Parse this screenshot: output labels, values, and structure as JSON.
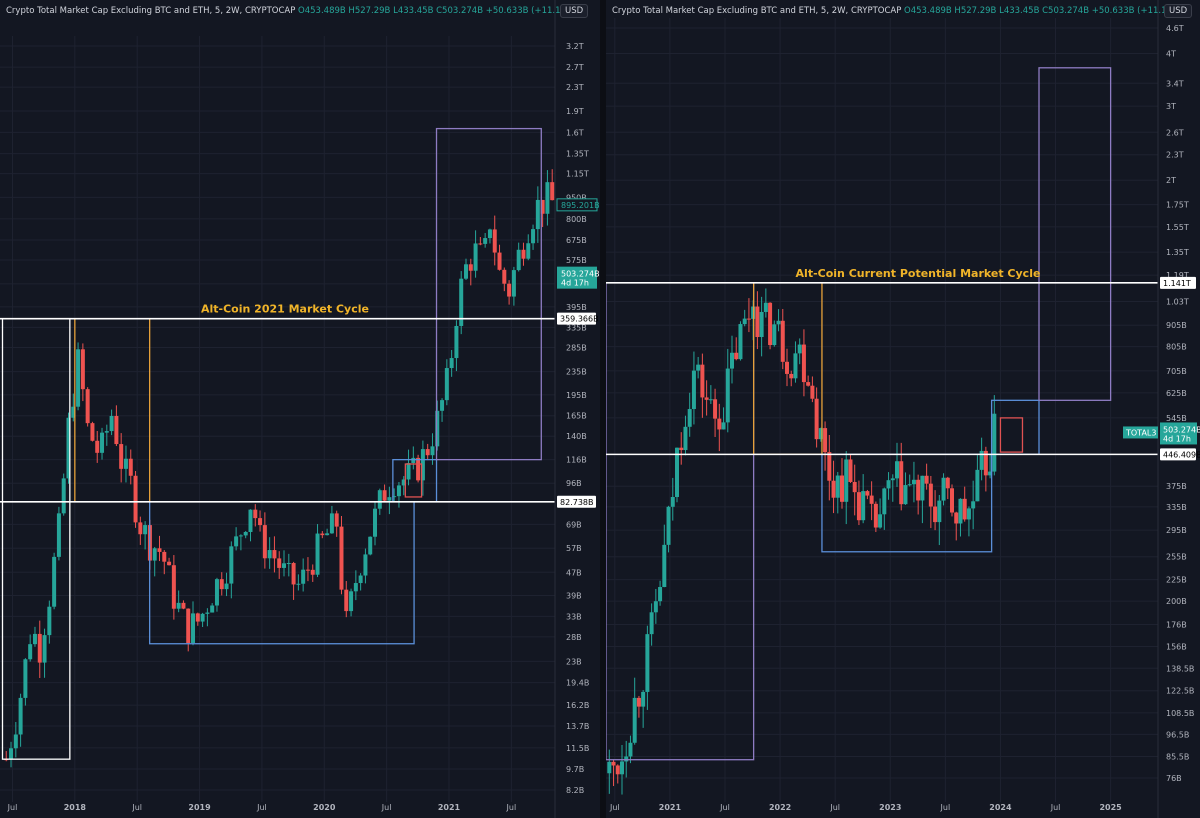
{
  "colors": {
    "bg": "#131722",
    "up": "#26a69a",
    "down": "#ef5350",
    "white_line": "#ffffff",
    "purple": "#8e7cc3",
    "blue": "#5b8fd9",
    "orange": "#e6a13a",
    "red": "#e05252"
  },
  "left": {
    "title": "Crypto Total Market Cap Excluding BTC and ETH, 5, 2W, CRYPTOCAP",
    "ohlc": {
      "o": "O453.489B",
      "h": "H527.29B",
      "l": "L433.45B",
      "c": "C503.274B",
      "chg": "+50.633B (+11.19%)"
    },
    "currency": "USD",
    "annotation": "Alt-Coin 2021 Market Cycle",
    "price_tags": {
      "top_line": "359.366B",
      "bottom_line": "82.738B",
      "last": "895.201B",
      "current": "503.274B",
      "countdown": "4d 17h"
    }
  },
  "right": {
    "title": "Crypto Total Market Cap Excluding BTC and ETH, 5, 2W, CRYPTOCAP",
    "ohlc": {
      "o": "O453.489B",
      "h": "H527.29B",
      "l": "L433.45B",
      "c": "C503.274B",
      "chg": "+50.633B (+11.19%)"
    },
    "currency": "USD",
    "annotation": "Alt-Coin Current Potential Market Cycle",
    "price_tags": {
      "top_line": "1.141T",
      "bottom_line": "446.409B",
      "symbol": "TOTAL3",
      "current": "503.274B",
      "countdown": "4d 17h"
    }
  },
  "chart_data": [
    {
      "type": "candlestick",
      "title": "Crypto Total Market Cap Excluding BTC and ETH, 5, 2W, CRYPTOCAP",
      "y_scale": "log",
      "ylim": [
        "8.2B",
        "3.2T"
      ],
      "y_ticks": [
        {
          "label": "3.2T",
          "v": 3200
        },
        {
          "label": "2.7T",
          "v": 2700
        },
        {
          "label": "2.3T",
          "v": 2300
        },
        {
          "label": "1.9T",
          "v": 1900
        },
        {
          "label": "1.6T",
          "v": 1600
        },
        {
          "label": "1.35T",
          "v": 1350
        },
        {
          "label": "1.15T",
          "v": 1150
        },
        {
          "label": "950B",
          "v": 950
        },
        {
          "label": "800B",
          "v": 800
        },
        {
          "label": "675B",
          "v": 675
        },
        {
          "label": "575B",
          "v": 575
        },
        {
          "label": "475B",
          "v": 475
        },
        {
          "label": "395B",
          "v": 395
        },
        {
          "label": "335B",
          "v": 335
        },
        {
          "label": "285B",
          "v": 285
        },
        {
          "label": "235B",
          "v": 235
        },
        {
          "label": "195B",
          "v": 195
        },
        {
          "label": "165B",
          "v": 165
        },
        {
          "label": "140B",
          "v": 140
        },
        {
          "label": "116B",
          "v": 116
        },
        {
          "label": "96B",
          "v": 96
        },
        {
          "label": "69B",
          "v": 69
        },
        {
          "label": "57B",
          "v": 57
        },
        {
          "label": "47B",
          "v": 47
        },
        {
          "label": "39B",
          "v": 39
        },
        {
          "label": "33B",
          "v": 33
        },
        {
          "label": "28B",
          "v": 28
        },
        {
          "label": "23B",
          "v": 23
        },
        {
          "label": "19.4B",
          "v": 19.4
        },
        {
          "label": "16.2B",
          "v": 16.2
        },
        {
          "label": "13.7B",
          "v": 13.7
        },
        {
          "label": "11.5B",
          "v": 11.5
        },
        {
          "label": "9.7B",
          "v": 9.7
        },
        {
          "label": "8.2B",
          "v": 8.2
        }
      ],
      "x_ticks": [
        {
          "label": "Jul",
          "t": 2017.5
        },
        {
          "label": "2018",
          "t": 2018.0
        },
        {
          "label": "Jul",
          "t": 2018.5
        },
        {
          "label": "2019",
          "t": 2019.0
        },
        {
          "label": "Jul",
          "t": 2019.5
        },
        {
          "label": "2020",
          "t": 2020.0
        },
        {
          "label": "Jul",
          "t": 2020.5
        },
        {
          "label": "2021",
          "t": 2021.0
        },
        {
          "label": "Jul",
          "t": 2021.5
        }
      ],
      "xlim": [
        2017.4,
        2021.85
      ],
      "price_path": [
        [
          2017.45,
          10.5
        ],
        [
          2017.55,
          16
        ],
        [
          2017.65,
          30
        ],
        [
          2017.72,
          26
        ],
        [
          2017.8,
          40
        ],
        [
          2017.88,
          70
        ],
        [
          2017.96,
          170
        ],
        [
          2018.03,
          260
        ],
        [
          2018.1,
          150
        ],
        [
          2018.2,
          120
        ],
        [
          2018.3,
          170
        ],
        [
          2018.38,
          110
        ],
        [
          2018.45,
          95
        ],
        [
          2018.52,
          70
        ],
        [
          2018.6,
          60
        ],
        [
          2018.7,
          55
        ],
        [
          2018.8,
          38
        ],
        [
          2018.9,
          30
        ],
        [
          2019.0,
          32
        ],
        [
          2019.1,
          40
        ],
        [
          2019.2,
          48
        ],
        [
          2019.3,
          60
        ],
        [
          2019.42,
          85
        ],
        [
          2019.48,
          62
        ],
        [
          2019.58,
          55
        ],
        [
          2019.7,
          45
        ],
        [
          2019.8,
          42
        ],
        [
          2019.9,
          52
        ],
        [
          2020.0,
          62
        ],
        [
          2020.1,
          70
        ],
        [
          2020.17,
          30
        ],
        [
          2020.28,
          50
        ],
        [
          2020.38,
          68
        ],
        [
          2020.48,
          90
        ],
        [
          2020.55,
          100
        ],
        [
          2020.62,
          98
        ],
        [
          2020.72,
          105
        ],
        [
          2020.82,
          125
        ],
        [
          2020.92,
          165
        ],
        [
          2021.0,
          230
        ],
        [
          2021.06,
          380
        ],
        [
          2021.12,
          520
        ],
        [
          2021.2,
          620
        ],
        [
          2021.28,
          580
        ],
        [
          2021.33,
          800
        ],
        [
          2021.4,
          520
        ],
        [
          2021.48,
          450
        ],
        [
          2021.56,
          600
        ],
        [
          2021.65,
          800
        ],
        [
          2021.72,
          900
        ],
        [
          2021.8,
          950
        ],
        [
          2021.84,
          895
        ]
      ],
      "lines": [
        {
          "label": "359.366B",
          "value": 359.366,
          "color": "white"
        },
        {
          "label": "82.738B",
          "value": 82.738,
          "color": "white"
        }
      ],
      "boxes": [
        {
          "color": "white",
          "t0": 2017.42,
          "t1": 2017.96,
          "v0": 10.5,
          "v1": 359.366
        },
        {
          "color": "orange",
          "t0": 2018.0,
          "t1": 2018.6,
          "v0": 82.738,
          "v1": 359.366
        },
        {
          "color": "blue",
          "t0": 2018.6,
          "t1": 2020.72,
          "v0": 26.5,
          "v1": 82.738
        },
        {
          "color": "blue",
          "t0": 2020.55,
          "t1": 2020.9,
          "v0": 82.738,
          "v1": 116
        },
        {
          "color": "red",
          "t0": 2020.65,
          "t1": 2020.78,
          "v0": 86,
          "v1": 112
        },
        {
          "color": "purple",
          "t0": 2020.9,
          "t1": 2021.74,
          "v0": 116,
          "v1": 1650
        }
      ],
      "annotation": "Alt-Coin 2021 Market Cycle"
    },
    {
      "type": "candlestick",
      "title": "Crypto Total Market Cap Excluding BTC and ETH, 5, 2W, CRYPTOCAP",
      "y_scale": "log",
      "ylim": [
        "76B",
        "4.6T"
      ],
      "y_ticks": [
        {
          "label": "4.6T",
          "v": 4600
        },
        {
          "label": "4T",
          "v": 4000
        },
        {
          "label": "3.4T",
          "v": 3400
        },
        {
          "label": "3T",
          "v": 3000
        },
        {
          "label": "2.6T",
          "v": 2600
        },
        {
          "label": "2.3T",
          "v": 2300
        },
        {
          "label": "2T",
          "v": 2000
        },
        {
          "label": "1.75T",
          "v": 1750
        },
        {
          "label": "1.55T",
          "v": 1550
        },
        {
          "label": "1.35T",
          "v": 1350
        },
        {
          "label": "1.19T",
          "v": 1190
        },
        {
          "label": "1.03T",
          "v": 1030
        },
        {
          "label": "905B",
          "v": 905
        },
        {
          "label": "805B",
          "v": 805
        },
        {
          "label": "705B",
          "v": 705
        },
        {
          "label": "625B",
          "v": 625
        },
        {
          "label": "545B",
          "v": 545
        },
        {
          "label": "375B",
          "v": 375
        },
        {
          "label": "335B",
          "v": 335
        },
        {
          "label": "295B",
          "v": 295
        },
        {
          "label": "255B",
          "v": 255
        },
        {
          "label": "225B",
          "v": 225
        },
        {
          "label": "200B",
          "v": 200
        },
        {
          "label": "176B",
          "v": 176
        },
        {
          "label": "156B",
          "v": 156
        },
        {
          "label": "138.5B",
          "v": 138.5
        },
        {
          "label": "122.5B",
          "v": 122.5
        },
        {
          "label": "108.5B",
          "v": 108.5
        },
        {
          "label": "96.5B",
          "v": 96.5
        },
        {
          "label": "85.5B",
          "v": 85.5
        },
        {
          "label": "76B",
          "v": 76
        }
      ],
      "x_ticks": [
        {
          "label": "Jul",
          "t": 2020.5
        },
        {
          "label": "2021",
          "t": 2021.0
        },
        {
          "label": "Jul",
          "t": 2021.5
        },
        {
          "label": "2022",
          "t": 2022.0
        },
        {
          "label": "Jul",
          "t": 2022.5
        },
        {
          "label": "2023",
          "t": 2023.0
        },
        {
          "label": "Jul",
          "t": 2023.5
        },
        {
          "label": "2024",
          "t": 2024.0
        },
        {
          "label": "Jul",
          "t": 2024.5
        },
        {
          "label": "2025",
          "t": 2025.0
        }
      ],
      "xlim": [
        2020.42,
        2025.43
      ],
      "price_path": [
        [
          2020.45,
          78
        ],
        [
          2020.55,
          85
        ],
        [
          2020.62,
          100
        ],
        [
          2020.72,
          125
        ],
        [
          2020.82,
          160
        ],
        [
          2020.92,
          230
        ],
        [
          2021.0,
          320
        ],
        [
          2021.08,
          480
        ],
        [
          2021.15,
          600
        ],
        [
          2021.22,
          700
        ],
        [
          2021.3,
          640
        ],
        [
          2021.4,
          540
        ],
        [
          2021.5,
          600
        ],
        [
          2021.6,
          800
        ],
        [
          2021.68,
          900
        ],
        [
          2021.76,
          1050
        ],
        [
          2021.84,
          900
        ],
        [
          2021.92,
          920
        ],
        [
          2022.0,
          850
        ],
        [
          2022.08,
          760
        ],
        [
          2022.16,
          800
        ],
        [
          2022.25,
          720
        ],
        [
          2022.33,
          550
        ],
        [
          2022.42,
          420
        ],
        [
          2022.5,
          380
        ],
        [
          2022.58,
          400
        ],
        [
          2022.66,
          370
        ],
        [
          2022.75,
          345
        ],
        [
          2022.83,
          300
        ],
        [
          2022.92,
          320
        ],
        [
          2023.0,
          370
        ],
        [
          2023.08,
          380
        ],
        [
          2023.17,
          370
        ],
        [
          2023.25,
          360
        ],
        [
          2023.33,
          350
        ],
        [
          2023.42,
          330
        ],
        [
          2023.5,
          350
        ],
        [
          2023.58,
          330
        ],
        [
          2023.67,
          320
        ],
        [
          2023.75,
          340
        ],
        [
          2023.83,
          400
        ],
        [
          2023.9,
          450
        ],
        [
          2023.95,
          500
        ]
      ],
      "lines": [
        {
          "label": "1.141T",
          "value": 1141,
          "color": "white"
        },
        {
          "label": "446.409B",
          "value": 446.409,
          "color": "white"
        }
      ],
      "boxes": [
        {
          "color": "purple",
          "t0": 2020.42,
          "t1": 2021.76,
          "v0": 84,
          "v1": 1141
        },
        {
          "color": "orange",
          "t0": 2021.76,
          "t1": 2022.38,
          "v0": 446.409,
          "v1": 1141
        },
        {
          "color": "blue",
          "t0": 2022.38,
          "t1": 2023.92,
          "v0": 262,
          "v1": 446.409
        },
        {
          "color": "blue",
          "t0": 2023.92,
          "t1": 2024.35,
          "v0": 446.409,
          "v1": 600
        },
        {
          "color": "red",
          "t0": 2024.0,
          "t1": 2024.2,
          "v0": 452,
          "v1": 545
        },
        {
          "color": "purple",
          "t0": 2024.35,
          "t1": 2025.0,
          "v0": 600,
          "v1": 3700
        }
      ],
      "annotation": "Alt-Coin Current Potential Market Cycle"
    }
  ]
}
